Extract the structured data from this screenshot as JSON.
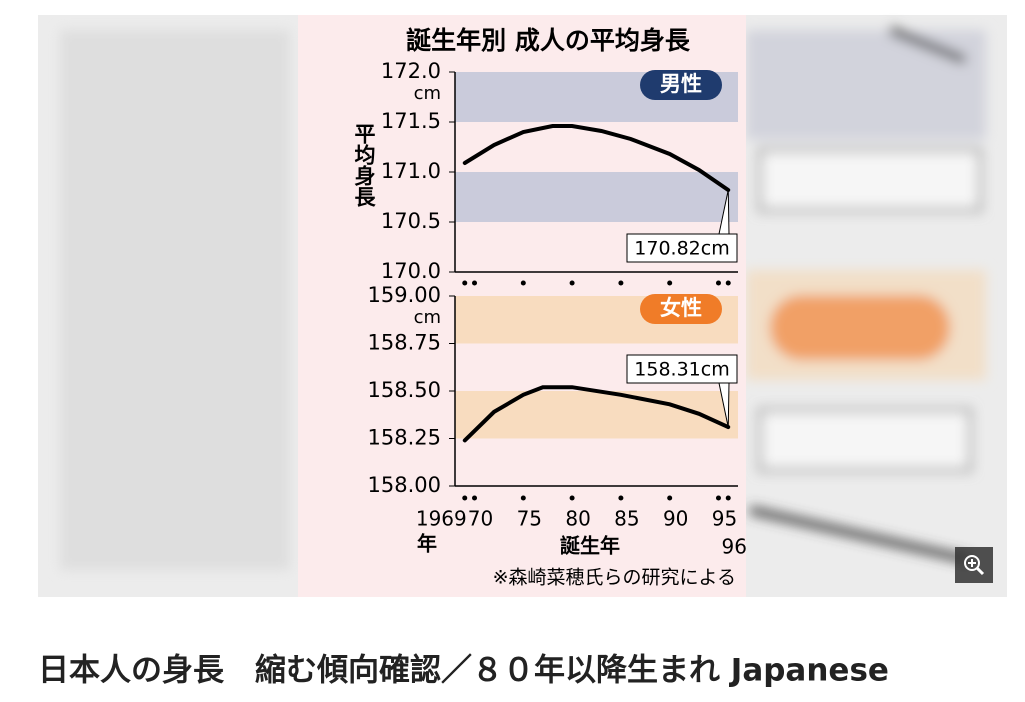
{
  "page": {
    "caption": "日本人の身長　縮む傾向確認／８０年以降生まれ Japanese"
  },
  "chart_data": [
    {
      "type": "line",
      "title": "誕生年別 成人の平均身長",
      "y_label": "平均身長",
      "y_unit": "cm",
      "x": [
        1969,
        1972,
        1975,
        1978,
        1980,
        1983,
        1986,
        1990,
        1993,
        1996
      ],
      "series": [
        {
          "name": "男性",
          "color": "#000000",
          "values": [
            171.09,
            171.27,
            171.4,
            171.46,
            171.46,
            171.41,
            171.33,
            171.18,
            171.02,
            170.82
          ],
          "value_labels": [
            null,
            null,
            null,
            null,
            null,
            null,
            null,
            null,
            null,
            "170.82cm"
          ]
        }
      ],
      "badge_color": "#1f3b6e",
      "bands": [
        [
          171.5,
          172.0
        ],
        [
          170.5,
          171.0
        ]
      ],
      "band_color": "#cacbdb",
      "xlim": [
        1968,
        1997
      ],
      "ylim": [
        170.0,
        172.0
      ],
      "yticks": [
        {
          "value": 172.0,
          "label": "172.0"
        },
        171.5,
        {
          "value": 171.0,
          "label": "171.0"
        },
        170.5,
        {
          "value": 170.0,
          "label": "170.0"
        }
      ]
    },
    {
      "type": "line",
      "y_unit": "cm",
      "x_label": "誕生年",
      "x_unit": "年",
      "note": "※森崎菜穂氏らの研究による",
      "x": [
        1969,
        1972,
        1975,
        1977,
        1980,
        1985,
        1990,
        1993,
        1996
      ],
      "series": [
        {
          "name": "女性",
          "color": "#000000",
          "values": [
            158.24,
            158.39,
            158.48,
            158.52,
            158.52,
            158.48,
            158.43,
            158.38,
            158.31
          ],
          "value_labels": [
            null,
            null,
            null,
            null,
            null,
            null,
            null,
            null,
            "158.31cm"
          ]
        }
      ],
      "badge_color": "#f07c28",
      "bands": [
        [
          158.75,
          159.0
        ],
        [
          158.25,
          158.5
        ]
      ],
      "band_color": "#f8dcbf",
      "xlim": [
        1968,
        1997
      ],
      "ylim": [
        158.0,
        159.0
      ],
      "yticks": [
        {
          "value": 159.0,
          "label": "159.00"
        },
        158.75,
        {
          "value": 158.5,
          "label": "158.50"
        },
        158.25,
        {
          "value": 158.0,
          "label": "158.00"
        }
      ],
      "xticks": [
        1969,
        {
          "value": 1970,
          "label": "70"
        },
        {
          "value": 1975,
          "label": "75"
        },
        {
          "value": 1980,
          "label": "80"
        },
        {
          "value": 1985,
          "label": "85"
        },
        {
          "value": 1990,
          "label": "90"
        },
        {
          "value": 1995,
          "label": "95"
        },
        {
          "value": 1996,
          "label": "96"
        }
      ]
    }
  ]
}
